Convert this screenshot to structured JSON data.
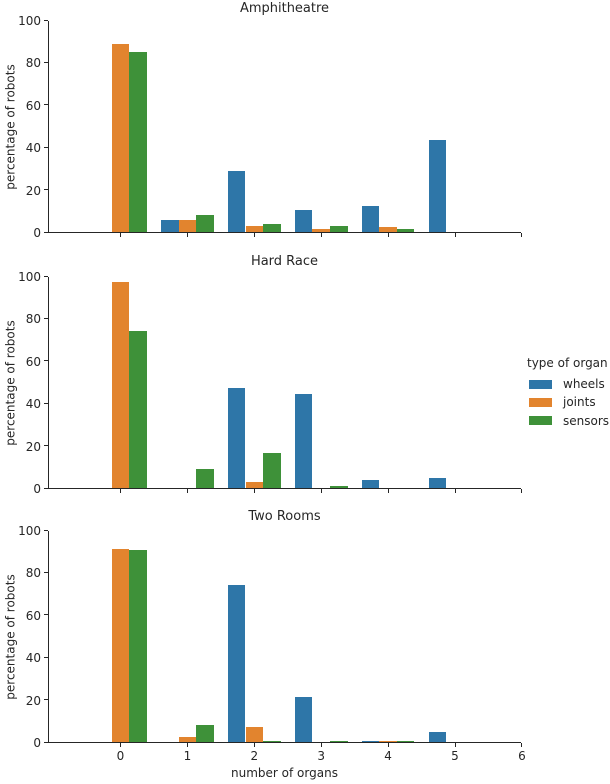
{
  "colors": {
    "wheels": "#2e76a8",
    "joints": "#e2842e",
    "sensors": "#3e9139",
    "axis": "#262626",
    "text": "#262626",
    "background": "#ffffff"
  },
  "legend": {
    "title": "type of organ",
    "entries": [
      {
        "label": "wheels",
        "color": "#2e76a8"
      },
      {
        "label": "joints",
        "color": "#e2842e"
      },
      {
        "label": "sensors",
        "color": "#3e9139"
      }
    ]
  },
  "chart_data": [
    {
      "type": "bar",
      "title": "Amphitheatre",
      "xlabel": "",
      "ylabel": "percentage of robots",
      "categories": [
        0,
        1,
        2,
        3,
        4,
        5,
        6
      ],
      "ylim": [
        0,
        100
      ],
      "yticks": [
        0,
        20,
        40,
        60,
        80,
        100
      ],
      "grid": false,
      "legend_position": "right-of-figure",
      "xticklabels_visible": false,
      "series": [
        {
          "name": "wheels",
          "color": "#2e76a8",
          "values": [
            0,
            5.5,
            29,
            10.5,
            12.5,
            43.5,
            0
          ]
        },
        {
          "name": "joints",
          "color": "#e2842e",
          "values": [
            88.5,
            5.5,
            3,
            1.5,
            2.5,
            0,
            0
          ]
        },
        {
          "name": "sensors",
          "color": "#3e9139",
          "values": [
            85,
            8,
            4,
            3,
            1.5,
            0,
            0
          ]
        }
      ]
    },
    {
      "type": "bar",
      "title": "Hard Race",
      "xlabel": "",
      "ylabel": "percentage of robots",
      "categories": [
        0,
        1,
        2,
        3,
        4,
        5,
        6
      ],
      "ylim": [
        0,
        100
      ],
      "yticks": [
        0,
        20,
        40,
        60,
        80,
        100
      ],
      "grid": false,
      "xticklabels_visible": false,
      "series": [
        {
          "name": "wheels",
          "color": "#2e76a8",
          "values": [
            0,
            0,
            47,
            44.5,
            4,
            4.5,
            0
          ]
        },
        {
          "name": "joints",
          "color": "#e2842e",
          "values": [
            97,
            0,
            3,
            0,
            0,
            0,
            0
          ]
        },
        {
          "name": "sensors",
          "color": "#3e9139",
          "values": [
            74,
            9,
            16.5,
            1,
            0,
            0,
            0
          ]
        }
      ]
    },
    {
      "type": "bar",
      "title": "Two Rooms",
      "xlabel": "number of organs",
      "ylabel": "percentage of robots",
      "categories": [
        0,
        1,
        2,
        3,
        4,
        5,
        6
      ],
      "ylim": [
        0,
        100
      ],
      "yticks": [
        0,
        20,
        40,
        60,
        80,
        100
      ],
      "grid": false,
      "xticklabels_visible": true,
      "series": [
        {
          "name": "wheels",
          "color": "#2e76a8",
          "values": [
            0,
            0,
            74,
            21,
            0.5,
            4.5,
            0
          ]
        },
        {
          "name": "joints",
          "color": "#e2842e",
          "values": [
            91,
            2.5,
            7,
            0,
            0.5,
            0,
            0
          ]
        },
        {
          "name": "sensors",
          "color": "#3e9139",
          "values": [
            90.5,
            8,
            0.5,
            0.5,
            0.5,
            0,
            0
          ]
        }
      ]
    }
  ]
}
